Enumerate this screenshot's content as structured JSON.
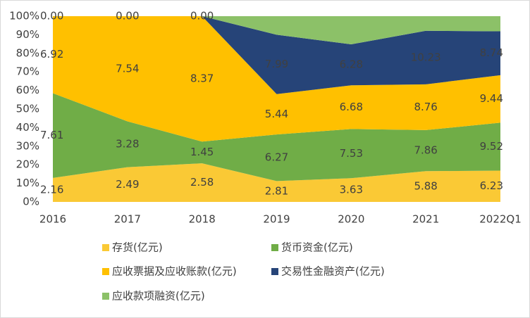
{
  "chart_data": {
    "type": "stacked_area_percent",
    "categories": [
      "2016",
      "2017",
      "2018",
      "2019",
      "2020",
      "2021",
      "2022Q1"
    ],
    "series": [
      {
        "name": "存货(亿元)",
        "color": "#fac935",
        "values": [
          2.16,
          2.49,
          2.58,
          2.81,
          3.63,
          5.88,
          6.23
        ]
      },
      {
        "name": "货币资金(亿元)",
        "color": "#70ad47",
        "values": [
          7.61,
          3.28,
          1.45,
          6.27,
          7.53,
          7.86,
          9.52
        ]
      },
      {
        "name": "应收票据及应收账款(亿元)",
        "color": "#ffc000",
        "values": [
          6.92,
          7.54,
          8.37,
          5.44,
          6.68,
          8.76,
          9.44
        ]
      },
      {
        "name": "交易性金融资产(亿元)",
        "color": "#264478",
        "values": [
          0,
          0,
          0,
          7.99,
          6.28,
          10.23,
          8.74
        ],
        "value_labels": [
          null,
          null,
          null,
          "7.99",
          "6.28",
          "10.23",
          "8.74"
        ]
      },
      {
        "name": "应收款项融资(亿元)",
        "color": "#8cc168",
        "values": [
          0,
          0,
          0,
          2.5,
          4.3,
          2.8,
          3.0
        ],
        "value_labels": [
          "0.00",
          "0.00",
          "0.00",
          null,
          null,
          null,
          null
        ]
      }
    ],
    "ylim": [
      0,
      100
    ],
    "yticks": [
      {
        "value": 0,
        "label": "0%"
      },
      {
        "value": 10,
        "label": "10%"
      },
      {
        "value": 20,
        "label": "20%"
      },
      {
        "value": 30,
        "label": "30%"
      },
      {
        "value": 40,
        "label": "40%"
      },
      {
        "value": 50,
        "label": "50%"
      },
      {
        "value": 60,
        "label": "60%"
      },
      {
        "value": 70,
        "label": "70%"
      },
      {
        "value": 80,
        "label": "80%"
      },
      {
        "value": 90,
        "label": "90%"
      },
      {
        "value": 100,
        "label": "100%"
      }
    ]
  }
}
